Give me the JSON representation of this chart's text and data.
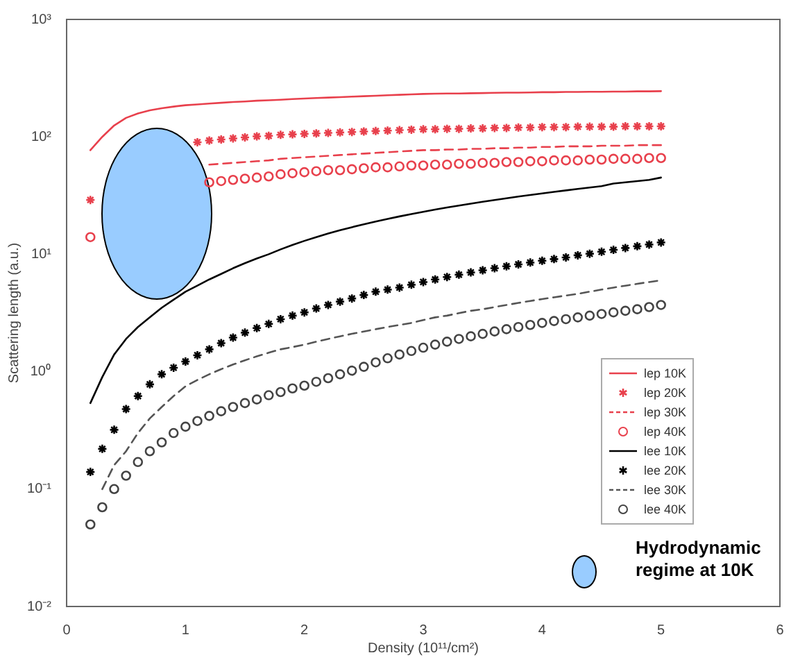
{
  "chart_data": {
    "type": "line",
    "xlabel": "Density (10¹¹/cm²)",
    "ylabel": "Scattering length (a.u.)",
    "log": true,
    "grid": false,
    "legend": "right",
    "xlim": [
      0,
      6
    ],
    "xticks": [
      0,
      1,
      2,
      3,
      4,
      5,
      6
    ],
    "ylim": [
      0.01,
      1000
    ],
    "yticks": [
      {
        "value": 0.01,
        "label": "10⁻²"
      },
      {
        "value": 0.1,
        "label": "10⁻¹"
      },
      {
        "value": 1,
        "label": "10⁰"
      },
      {
        "value": 10,
        "label": "10¹"
      },
      {
        "value": 100,
        "label": "10²"
      },
      {
        "value": 1000,
        "label": "10³"
      }
    ],
    "annotations": [
      "Hydrodynamic regime at 10K"
    ],
    "x": [
      0.2,
      0.3,
      0.4,
      0.5,
      0.6,
      0.7,
      0.8,
      0.9,
      1.0,
      1.1,
      1.2,
      1.3,
      1.4,
      1.5,
      1.6,
      1.7,
      1.8,
      1.9,
      2.0,
      2.1,
      2.2,
      2.3,
      2.4,
      2.5,
      2.6,
      2.7,
      2.8,
      2.9,
      3.0,
      3.1,
      3.2,
      3.3,
      3.4,
      3.5,
      3.6,
      3.7,
      3.8,
      3.9,
      4.0,
      4.1,
      4.2,
      4.3,
      4.4,
      4.5,
      4.6,
      4.7,
      4.8,
      4.9,
      5.0
    ],
    "series": [
      {
        "name": "lep 10K",
        "color": "#e8404c",
        "line_style": "solid",
        "marker": "none",
        "values": [
          77,
          100,
          125,
          145,
          158,
          168,
          175,
          181,
          186,
          189,
          192,
          195,
          198,
          200,
          203,
          205,
          207,
          210,
          212,
          214,
          216,
          218,
          220,
          222,
          224,
          226,
          228,
          230,
          232,
          233,
          234,
          234,
          235,
          236,
          237,
          238,
          238,
          239,
          240,
          240,
          241,
          241,
          242,
          242,
          243,
          243,
          244,
          244,
          245
        ]
      },
      {
        "name": "lep 20K",
        "color": "#e8404c",
        "type": "scatter",
        "marker": "cross",
        "values": [
          29,
          null,
          null,
          null,
          null,
          null,
          null,
          null,
          null,
          90,
          93,
          95,
          97,
          99,
          101,
          102,
          104,
          105,
          106,
          107,
          108,
          109,
          110,
          111,
          112,
          113,
          114,
          115,
          116,
          116,
          117,
          117,
          118,
          118,
          119,
          119,
          120,
          120,
          121,
          121,
          121,
          122,
          122,
          122,
          122,
          123,
          123,
          123,
          123
        ]
      },
      {
        "name": "lep 30K",
        "color": "#e8404c",
        "line_style": "dashed",
        "marker": "none",
        "values": [
          null,
          null,
          null,
          null,
          null,
          null,
          null,
          null,
          null,
          null,
          58,
          59,
          60,
          61,
          62,
          63,
          65,
          66,
          67,
          68,
          69,
          70,
          71,
          72,
          73,
          74,
          75,
          76,
          77,
          77,
          78,
          78,
          79,
          79,
          80,
          80,
          81,
          81,
          82,
          82,
          83,
          83,
          83,
          84,
          84,
          84,
          85,
          85,
          85
        ]
      },
      {
        "name": "lep 40K",
        "color": "#e8404c",
        "type": "scatter",
        "marker": "circle",
        "values": [
          14,
          null,
          null,
          null,
          null,
          null,
          null,
          null,
          null,
          null,
          41,
          42,
          43,
          44,
          45,
          46,
          48,
          49,
          50,
          51,
          52,
          52,
          53,
          54,
          55,
          55,
          56,
          57,
          57,
          58,
          58,
          59,
          59,
          60,
          60,
          61,
          61,
          62,
          62,
          63,
          63,
          63,
          64,
          64,
          65,
          65,
          65,
          66,
          66
        ]
      },
      {
        "name": "lee 10K",
        "color": "#000000",
        "line_style": "solid",
        "marker": "none",
        "values": [
          0.54,
          0.9,
          1.4,
          1.9,
          2.4,
          2.9,
          3.5,
          4.1,
          4.8,
          5.4,
          6.1,
          6.8,
          7.6,
          8.4,
          9.2,
          10,
          11,
          12,
          13,
          14,
          15,
          16,
          17,
          18,
          19,
          20,
          21,
          22,
          23,
          24,
          25,
          26,
          27,
          28,
          29,
          30,
          31,
          32,
          33,
          34,
          35,
          36,
          37,
          38,
          40,
          41,
          42,
          43,
          45
        ]
      },
      {
        "name": "lee 20K",
        "color": "#000000",
        "type": "scatter",
        "marker": "cross",
        "values": [
          0.14,
          0.22,
          0.32,
          0.48,
          0.62,
          0.78,
          0.95,
          1.08,
          1.22,
          1.38,
          1.55,
          1.75,
          1.95,
          2.15,
          2.35,
          2.55,
          2.8,
          3.0,
          3.2,
          3.45,
          3.7,
          3.95,
          4.2,
          4.5,
          4.8,
          5.0,
          5.2,
          5.5,
          5.8,
          6.1,
          6.4,
          6.7,
          7.0,
          7.3,
          7.6,
          7.9,
          8.2,
          8.5,
          8.8,
          9.1,
          9.4,
          9.8,
          10.1,
          10.5,
          10.9,
          11.3,
          11.7,
          12.1,
          12.6
        ]
      },
      {
        "name": "lee 30K",
        "color": "#555555",
        "line_style": "dashed",
        "marker": "none",
        "values": [
          null,
          0.1,
          0.16,
          0.21,
          0.3,
          0.4,
          0.5,
          0.62,
          0.75,
          0.85,
          0.95,
          1.05,
          1.15,
          1.25,
          1.35,
          1.45,
          1.55,
          1.62,
          1.7,
          1.8,
          1.9,
          2.0,
          2.1,
          2.2,
          2.3,
          2.4,
          2.5,
          2.6,
          2.75,
          2.9,
          3.0,
          3.15,
          3.3,
          3.4,
          3.55,
          3.7,
          3.85,
          4.0,
          4.15,
          4.3,
          4.45,
          4.6,
          4.8,
          5.0,
          5.2,
          5.4,
          5.6,
          5.8,
          6.0
        ]
      },
      {
        "name": "lee 40K",
        "color": "#444444",
        "type": "scatter",
        "marker": "circle",
        "values": [
          0.05,
          0.07,
          0.1,
          0.13,
          0.17,
          0.21,
          0.25,
          0.3,
          0.34,
          0.38,
          0.42,
          0.46,
          0.5,
          0.54,
          0.58,
          0.63,
          0.67,
          0.72,
          0.76,
          0.82,
          0.88,
          0.95,
          1.02,
          1.1,
          1.2,
          1.3,
          1.4,
          1.5,
          1.6,
          1.7,
          1.8,
          1.9,
          2.0,
          2.1,
          2.2,
          2.3,
          2.4,
          2.5,
          2.6,
          2.7,
          2.8,
          2.9,
          3.0,
          3.1,
          3.2,
          3.3,
          3.4,
          3.55,
          3.7
        ]
      }
    ]
  }
}
